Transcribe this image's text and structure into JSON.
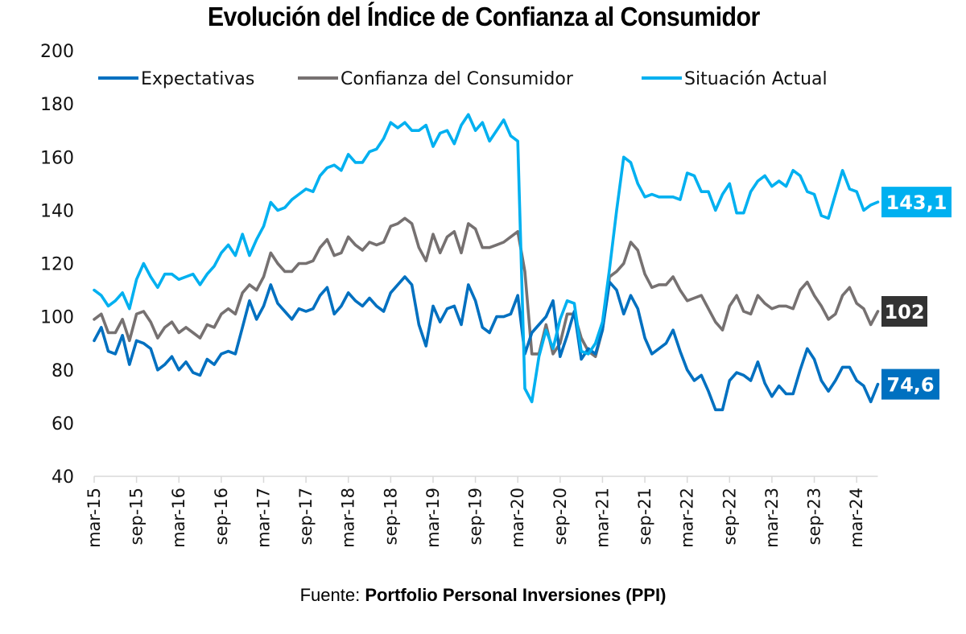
{
  "chart_data": {
    "type": "line",
    "title": "Evolución del Índice de Confianza al Consumidor",
    "xlabel": "",
    "ylabel": "",
    "ylim": [
      40,
      200
    ],
    "yticks": [
      40,
      60,
      80,
      100,
      120,
      140,
      160,
      180,
      200
    ],
    "grid": false,
    "legend_position": "top",
    "x_start": "mar-15",
    "x_end": "jun-24",
    "x_tick_labels": [
      "mar-15",
      "sep-15",
      "mar-16",
      "sep-16",
      "mar-17",
      "sep-17",
      "mar-18",
      "sep-18",
      "mar-19",
      "sep-19",
      "mar-20",
      "sep-20",
      "mar-21",
      "sep-21",
      "mar-22",
      "sep-22",
      "mar-23",
      "sep-23",
      "mar-24"
    ],
    "x_tick_step_months": 6,
    "series": [
      {
        "name": "Expectativas",
        "color": "#0070C0",
        "end_label": "74,6",
        "values": [
          91,
          96,
          87,
          86,
          93,
          82,
          91,
          90,
          88,
          80,
          82,
          85,
          80,
          83,
          79,
          78,
          84,
          82,
          86,
          87,
          86,
          96,
          106,
          99,
          104,
          112,
          105,
          102,
          99,
          103,
          102,
          103,
          108,
          111,
          101,
          104,
          109,
          106,
          104,
          107,
          104,
          102,
          109,
          112,
          115,
          112,
          97,
          89,
          104,
          98,
          103,
          104,
          97,
          112,
          106,
          96,
          94,
          100,
          100,
          101,
          108,
          86,
          94,
          97,
          100,
          106,
          85,
          93,
          102,
          84,
          88,
          86,
          95,
          113,
          110,
          101,
          108,
          103,
          92,
          86,
          88,
          90,
          95,
          87,
          80,
          76,
          78,
          72,
          65,
          65,
          76,
          79,
          78,
          76,
          83,
          75,
          70,
          74,
          71,
          71,
          80,
          88,
          84,
          76,
          72,
          76,
          81,
          81,
          76,
          74,
          68,
          74.6
        ]
      },
      {
        "name": "Confianza del Consumidor",
        "color": "#767171",
        "end_label": "102",
        "values": [
          99,
          101,
          94,
          94,
          99,
          91,
          101,
          102,
          98,
          92,
          96,
          98,
          94,
          96,
          94,
          92,
          97,
          96,
          101,
          103,
          101,
          109,
          112,
          110,
          115,
          124,
          120,
          117,
          117,
          120,
          120,
          121,
          126,
          129,
          123,
          124,
          130,
          127,
          125,
          128,
          127,
          128,
          134,
          135,
          137,
          135,
          126,
          121,
          131,
          124,
          130,
          132,
          124,
          135,
          133,
          126,
          126,
          127,
          128,
          130,
          132,
          117,
          86,
          86,
          97,
          86,
          90,
          101,
          101,
          92,
          87,
          85,
          95,
          115,
          117,
          120,
          128,
          125,
          116,
          111,
          112,
          112,
          115,
          110,
          106,
          107,
          108,
          103,
          98,
          95,
          104,
          108,
          102,
          101,
          108,
          105,
          103,
          104,
          104,
          103,
          110,
          113,
          108,
          104,
          99,
          101,
          108,
          111,
          105,
          103,
          97,
          102
        ]
      },
      {
        "name": "Situación Actual",
        "color": "#00B0F0",
        "end_label": "143,1",
        "values": [
          110,
          108,
          104,
          106,
          109,
          103,
          114,
          120,
          115,
          111,
          116,
          116,
          114,
          115,
          116,
          112,
          116,
          119,
          124,
          127,
          123,
          131,
          123,
          129,
          134,
          143,
          140,
          141,
          144,
          146,
          148,
          147,
          153,
          156,
          157,
          155,
          161,
          158,
          158,
          162,
          163,
          167,
          173,
          171,
          173,
          170,
          170,
          172,
          164,
          169,
          170,
          165,
          172,
          176,
          170,
          173,
          166,
          170,
          174,
          168,
          166,
          73,
          68,
          85,
          95,
          88,
          99,
          106,
          105,
          87,
          86,
          90,
          98,
          118,
          140,
          160,
          158,
          150,
          145,
          146,
          145,
          145,
          145,
          144,
          154,
          153,
          147,
          147,
          140,
          146,
          150,
          139,
          139,
          147,
          151,
          153,
          149,
          151,
          149,
          155,
          153,
          147,
          146,
          138,
          137,
          146,
          155,
          148,
          147,
          140,
          142,
          143.1
        ]
      }
    ]
  },
  "source": {
    "prefix": "Fuente:",
    "name": "Portfolio Personal Inversiones (PPI)"
  }
}
